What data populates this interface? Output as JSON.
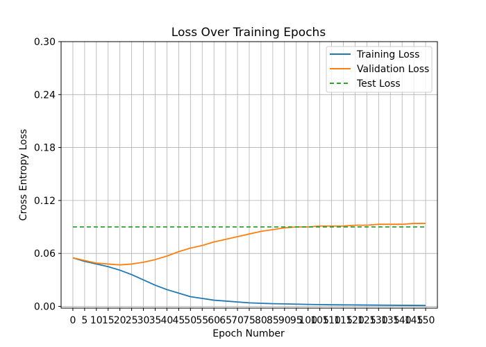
{
  "chart_data": {
    "type": "line",
    "title": "Loss Over Training Epochs",
    "xlabel": "Epoch Number",
    "ylabel": "Cross Entropy Loss",
    "xlim": [
      -5,
      155
    ],
    "ylim": [
      -0.002,
      0.3
    ],
    "yticks": [
      0.0,
      0.06,
      0.12,
      0.18,
      0.24,
      0.3
    ],
    "ytick_labels": [
      "0.00",
      "0.06",
      "0.12",
      "0.18",
      "0.24",
      "0.30"
    ],
    "xticks": [
      0,
      5,
      10,
      15,
      20,
      25,
      30,
      35,
      40,
      45,
      50,
      55,
      60,
      65,
      70,
      75,
      80,
      85,
      90,
      95,
      100,
      105,
      110,
      115,
      120,
      125,
      130,
      135,
      140,
      145,
      150
    ],
    "xtick_labels": [
      "0",
      "5",
      "10",
      "15",
      "20",
      "25",
      "30",
      "35",
      "40",
      "45",
      "50",
      "55",
      "60",
      "65",
      "70",
      "75",
      "80",
      "85",
      "90",
      "95",
      "100",
      "105",
      "110",
      "115",
      "120",
      "125",
      "130",
      "135",
      "140",
      "145",
      "150"
    ],
    "grid": true,
    "legend_position": "top-right",
    "series": [
      {
        "name": "Training Loss",
        "color": "#1f77b4",
        "style": "solid",
        "x": [
          0,
          5,
          10,
          15,
          20,
          25,
          30,
          35,
          40,
          45,
          50,
          55,
          60,
          65,
          70,
          75,
          80,
          85,
          90,
          95,
          100,
          105,
          110,
          115,
          120,
          125,
          130,
          135,
          140,
          145,
          150
        ],
        "values": [
          0.055,
          0.051,
          0.048,
          0.045,
          0.041,
          0.036,
          0.03,
          0.024,
          0.019,
          0.015,
          0.011,
          0.009,
          0.007,
          0.006,
          0.005,
          0.004,
          0.0035,
          0.003,
          0.0028,
          0.0025,
          0.0022,
          0.002,
          0.0018,
          0.0017,
          0.0016,
          0.0015,
          0.0014,
          0.0013,
          0.0012,
          0.0011,
          0.001
        ]
      },
      {
        "name": "Validation Loss",
        "color": "#ff7f0e",
        "style": "solid",
        "x": [
          0,
          5,
          10,
          15,
          20,
          25,
          30,
          35,
          40,
          45,
          50,
          55,
          60,
          65,
          70,
          75,
          80,
          85,
          90,
          95,
          100,
          105,
          110,
          115,
          120,
          125,
          130,
          135,
          140,
          145,
          150
        ],
        "values": [
          0.055,
          0.052,
          0.049,
          0.048,
          0.047,
          0.048,
          0.05,
          0.053,
          0.057,
          0.062,
          0.066,
          0.069,
          0.073,
          0.076,
          0.079,
          0.082,
          0.085,
          0.087,
          0.089,
          0.09,
          0.09,
          0.091,
          0.091,
          0.091,
          0.092,
          0.092,
          0.093,
          0.093,
          0.093,
          0.094,
          0.094
        ]
      },
      {
        "name": "Test Loss",
        "color": "#2ca02c",
        "style": "dashed",
        "x": [
          0,
          150
        ],
        "values": [
          0.09,
          0.09
        ]
      }
    ]
  }
}
